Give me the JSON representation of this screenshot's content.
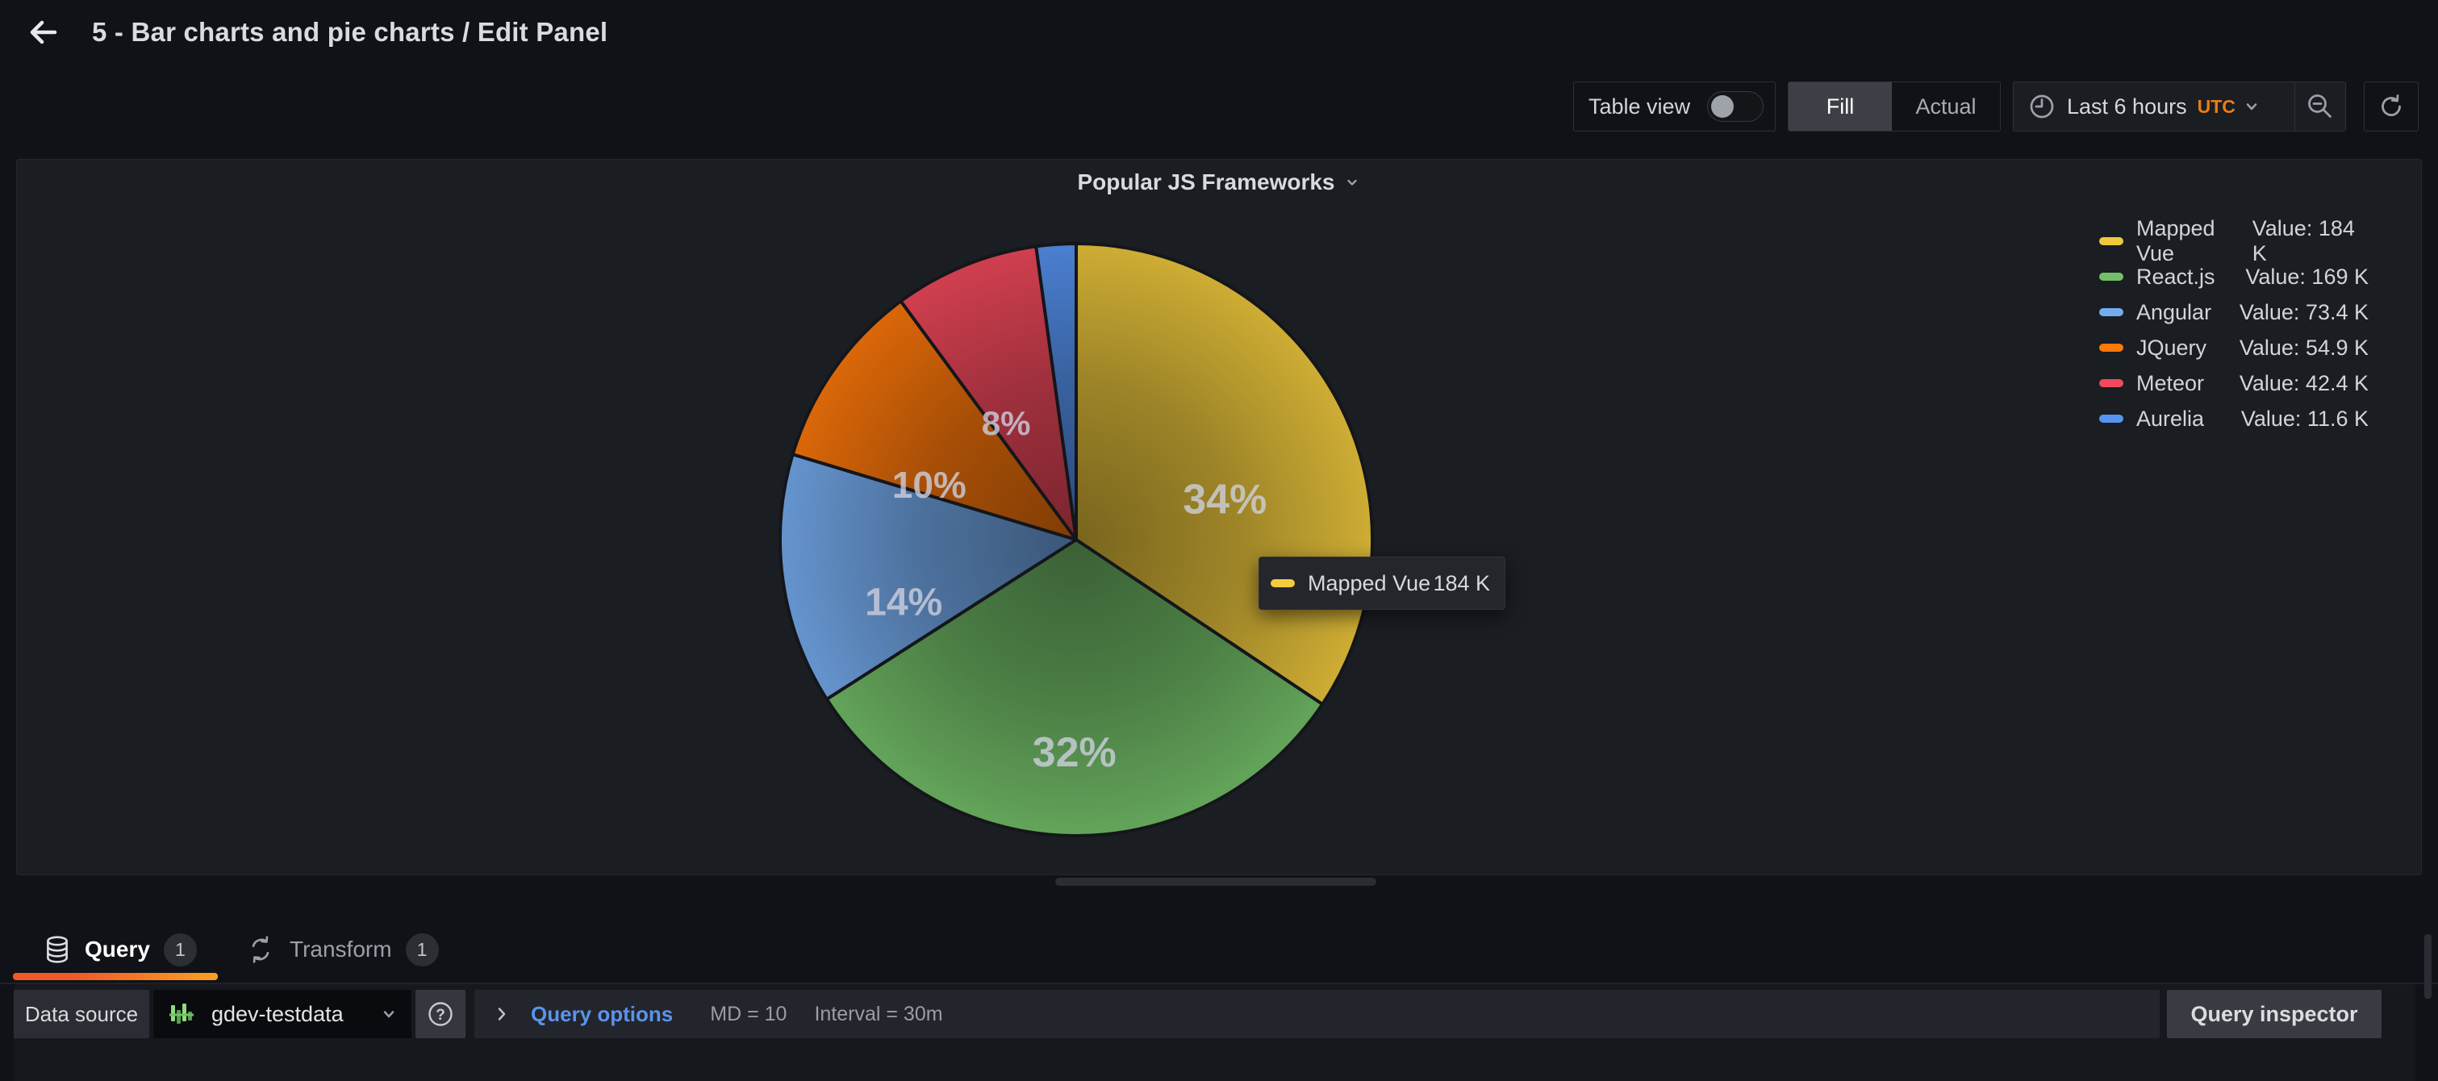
{
  "header": {
    "title": "5 - Bar charts and pie charts / Edit Panel"
  },
  "toolbar": {
    "table_view_label": "Table view",
    "fill_label": "Fill",
    "actual_label": "Actual",
    "time_range_label": "Last 6 hours",
    "timezone_label": "UTC"
  },
  "panel": {
    "title": "Popular JS Frameworks"
  },
  "chart_data": {
    "type": "pie",
    "title": "Popular JS Frameworks",
    "legend_position": "right",
    "legend_value_prefix": "Value:",
    "series": [
      {
        "name": "Mapped Vue",
        "value": 184000,
        "display_value": "184 K",
        "legend_value": "Value: 184 K",
        "percent_label": "34%",
        "color": "#EFC93C"
      },
      {
        "name": "React.js",
        "value": 169000,
        "display_value": "169 K",
        "legend_value": "Value: 169 K",
        "percent_label": "32%",
        "color": "#73BF69"
      },
      {
        "name": "Angular",
        "value": 73400,
        "display_value": "73.4 K",
        "legend_value": "Value: 73.4 K",
        "percent_label": "14%",
        "color": "#75ACF0"
      },
      {
        "name": "JQuery",
        "value": 54900,
        "display_value": "54.9 K",
        "legend_value": "Value: 54.9 K",
        "percent_label": "10%",
        "color": "#FF780A"
      },
      {
        "name": "Meteor",
        "value": 42400,
        "display_value": "42.4 K",
        "legend_value": "Value: 42.4 K",
        "percent_label": "8%",
        "color": "#F2495C"
      },
      {
        "name": "Aurelia",
        "value": 11600,
        "display_value": "11.6 K",
        "legend_value": "Value: 11.6 K",
        "percent_label": "",
        "color": "#5794F2"
      }
    ]
  },
  "tooltip": {
    "series": "Mapped Vue",
    "value": "184 K",
    "color": "#F2CC3D"
  },
  "tabs": {
    "query_label": "Query",
    "query_count": "1",
    "transform_label": "Transform",
    "transform_count": "1"
  },
  "query_bar": {
    "datasource_label": "Data source",
    "datasource_value": "gdev-testdata",
    "query_options_label": "Query options",
    "max_data_points": "MD = 10",
    "interval": "Interval = 30m",
    "inspector_label": "Query inspector"
  },
  "icons": {
    "back": "arrow-left",
    "time": "clock-nine",
    "zoom_out": "magnifier-minus",
    "refresh": "sync",
    "query_tab": "database",
    "transform_tab": "process",
    "help": "question-circle",
    "datasource": "testdata-bars",
    "caret": "chevron-down",
    "options_expand": "chevron-right"
  },
  "colors": {
    "page_bg": "#111217",
    "panel_bg": "#1A1D22",
    "accent_orange": "#EB7B18",
    "link_blue": "#5B93EB",
    "underline_from": "#F05A28",
    "underline_to": "#FB9E24"
  }
}
